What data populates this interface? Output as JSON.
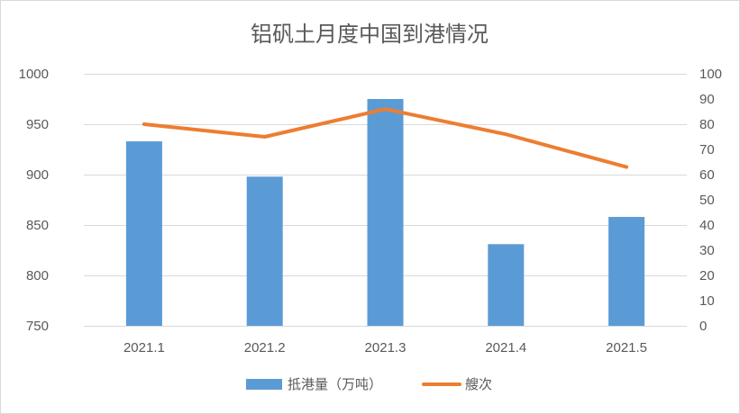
{
  "chart_data": {
    "type": "bar",
    "title": "铝矾土月度中国到港情况",
    "categories": [
      "2021.1",
      "2021.2",
      "2021.3",
      "2021.4",
      "2021.5"
    ],
    "series": [
      {
        "name": "抵港量（万吨）",
        "type": "bar",
        "axis": "left",
        "color": "#5b9bd5",
        "values": [
          933,
          898,
          975,
          831,
          858
        ]
      },
      {
        "name": "艘次",
        "type": "line",
        "axis": "right",
        "color": "#ed7d31",
        "values": [
          80,
          75,
          86,
          76,
          63
        ]
      }
    ],
    "y_left": {
      "min": 750,
      "max": 1000,
      "ticks": [
        750,
        800,
        850,
        900,
        950,
        1000
      ]
    },
    "y_right": {
      "min": 0,
      "max": 100,
      "ticks": [
        0,
        10,
        20,
        30,
        40,
        50,
        60,
        70,
        80,
        90,
        100
      ]
    },
    "grid": true,
    "legend": "bottom"
  }
}
